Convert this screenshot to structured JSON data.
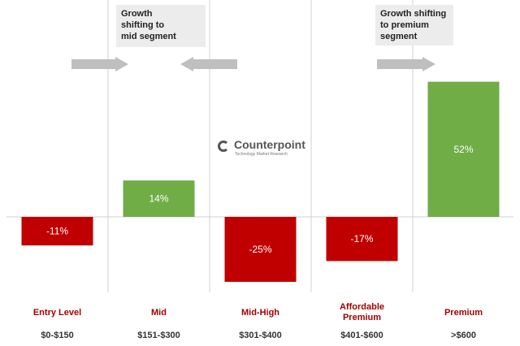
{
  "brand": {
    "name": "Counterpoint",
    "tagline": "Technology Market Research",
    "color": "#555555"
  },
  "callouts": [
    {
      "text": "Growth\nshifting to\nmid segment",
      "arrows": "both toward mid segment"
    },
    {
      "text": "Growth shifting\nto premium\nsegment",
      "arrows": "toward premium segment"
    }
  ],
  "colors": {
    "negative": "#c00000",
    "positive": "#70ad47",
    "category_label": "#a00000",
    "arrow": "#bfbfbf",
    "axis": "#d0d0d0"
  },
  "chart_data": {
    "type": "bar",
    "title": "",
    "xlabel": "",
    "ylabel": "",
    "categories": [
      "Entry Level",
      "Mid",
      "Mid-High",
      "Affordable\nPremium",
      "Premium"
    ],
    "price_ranges": [
      "$0-$150",
      "$151-$300",
      "$301-$400",
      "$401-$600",
      ">$600"
    ],
    "values": [
      -11,
      14,
      -25,
      -17,
      52
    ],
    "data_labels": [
      "-11%",
      "14%",
      "-25%",
      "-17%",
      "52%"
    ],
    "ylim": [
      -30,
      52
    ],
    "grid": false,
    "legend": "none"
  }
}
